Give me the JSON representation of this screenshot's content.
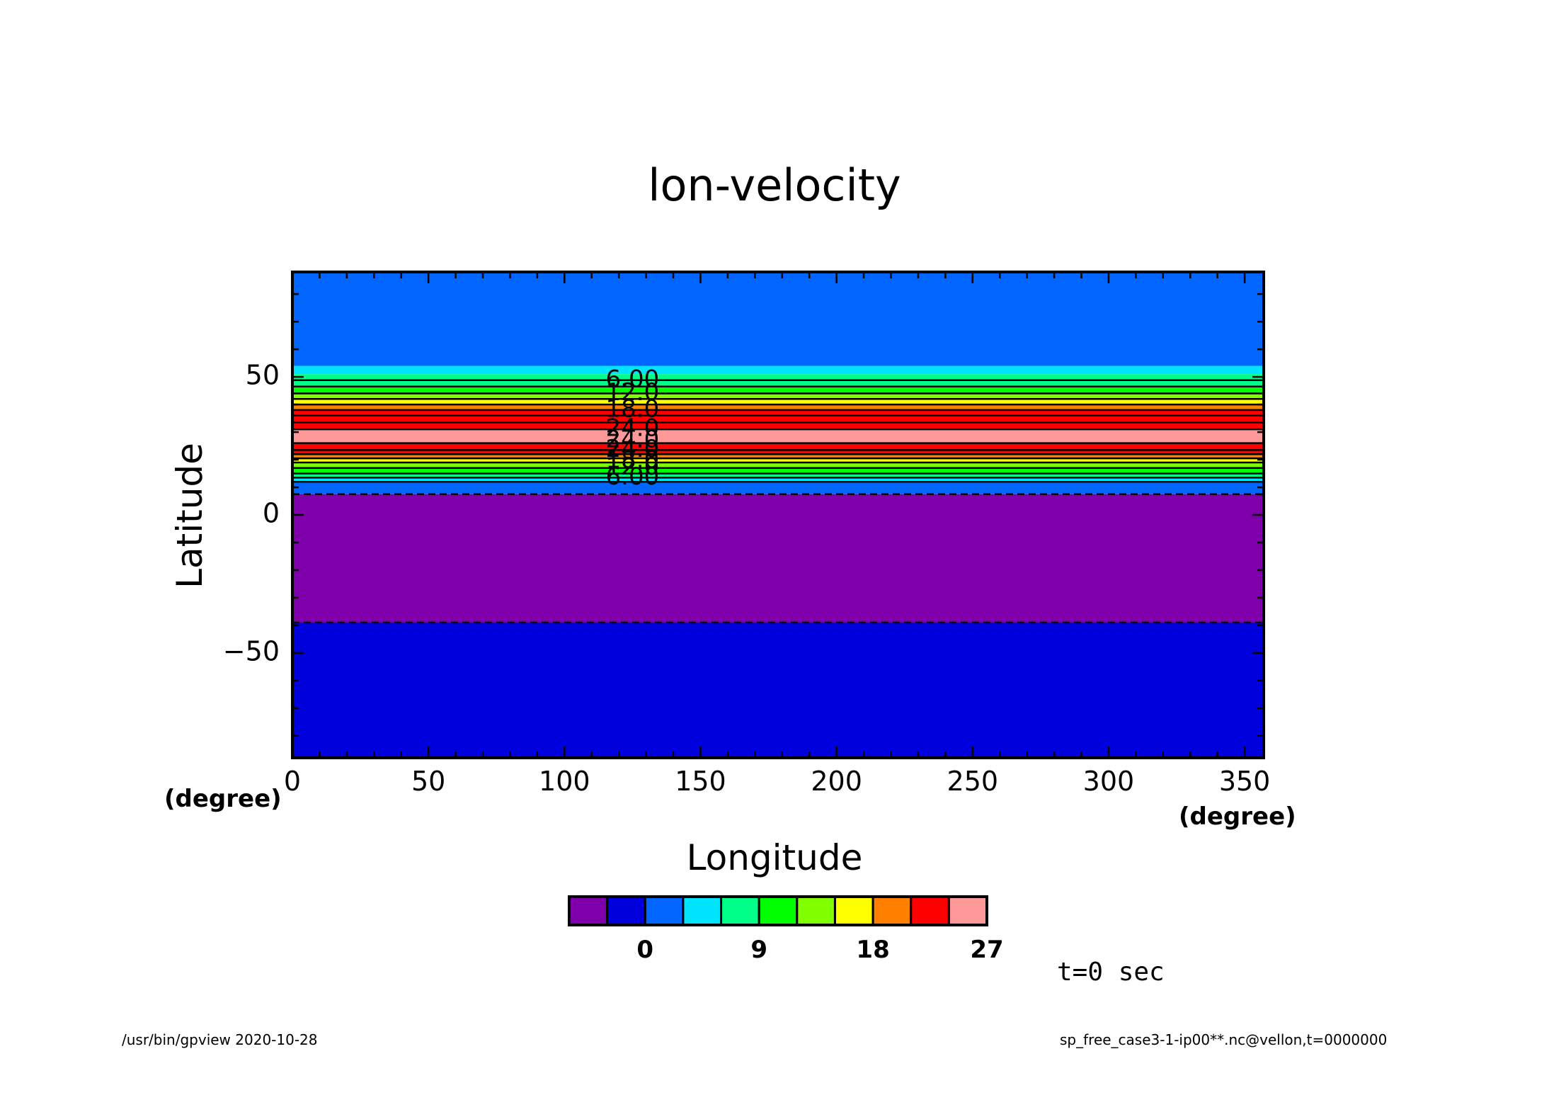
{
  "chart_data": {
    "type": "contour",
    "title": "lon-velocity",
    "xlabel": "Longitude",
    "ylabel": "Latitude",
    "xunit": "(degree)",
    "yunit": "(degree)",
    "xlim": [
      0,
      357
    ],
    "ylim": [
      -88,
      88
    ],
    "xticks": [
      0,
      50,
      100,
      150,
      200,
      250,
      300,
      350
    ],
    "yticks": [
      -50,
      0,
      50
    ],
    "bands": [
      {
        "lat_from": 54,
        "lat_to": 88,
        "color": "#0066ff"
      },
      {
        "lat_from": 51,
        "lat_to": 54,
        "color": "#00e5ff"
      },
      {
        "lat_from": 48.8,
        "lat_to": 51,
        "color": "#00ff88"
      },
      {
        "lat_from": 46.5,
        "lat_to": 48.8,
        "color": "#00ff88"
      },
      {
        "lat_from": 44,
        "lat_to": 46.5,
        "color": "#00ff00"
      },
      {
        "lat_from": 42,
        "lat_to": 44,
        "color": "#80ff00"
      },
      {
        "lat_from": 40,
        "lat_to": 42,
        "color": "#ffff00"
      },
      {
        "lat_from": 38,
        "lat_to": 40,
        "color": "#ff7f00"
      },
      {
        "lat_from": 36,
        "lat_to": 38,
        "color": "#ff0000"
      },
      {
        "lat_from": 31,
        "lat_to": 36,
        "color": "#ff0000"
      },
      {
        "lat_from": 26,
        "lat_to": 31,
        "color": "#ff9999"
      },
      {
        "lat_from": 22,
        "lat_to": 26,
        "color": "#ff0000"
      },
      {
        "lat_from": 20.5,
        "lat_to": 22,
        "color": "#ff7f00"
      },
      {
        "lat_from": 19,
        "lat_to": 20.5,
        "color": "#ffff00"
      },
      {
        "lat_from": 17,
        "lat_to": 19,
        "color": "#80ff00"
      },
      {
        "lat_from": 15,
        "lat_to": 17,
        "color": "#00ff00"
      },
      {
        "lat_from": 13.5,
        "lat_to": 15,
        "color": "#00ff88"
      },
      {
        "lat_from": 12,
        "lat_to": 13.5,
        "color": "#00e5ff"
      },
      {
        "lat_from": 7.5,
        "lat_to": 12,
        "color": "#0066ff"
      },
      {
        "lat_from": -39,
        "lat_to": 7.5,
        "color": "#7f00aa"
      },
      {
        "lat_from": -88,
        "lat_to": -39,
        "color": "#0000dd"
      }
    ],
    "contours": [
      {
        "lat": 48.8,
        "style": "solid"
      },
      {
        "lat": 46.5,
        "style": "solid"
      },
      {
        "lat": 44,
        "style": "solid"
      },
      {
        "lat": 42,
        "style": "solid"
      },
      {
        "lat": 40,
        "style": "solid"
      },
      {
        "lat": 38,
        "style": "solid"
      },
      {
        "lat": 36,
        "style": "solid"
      },
      {
        "lat": 33.5,
        "style": "solid"
      },
      {
        "lat": 31,
        "style": "solid"
      },
      {
        "lat": 26,
        "style": "solid"
      },
      {
        "lat": 23.5,
        "style": "solid"
      },
      {
        "lat": 22,
        "style": "solid"
      },
      {
        "lat": 20.5,
        "style": "solid"
      },
      {
        "lat": 19,
        "style": "solid"
      },
      {
        "lat": 17,
        "style": "solid"
      },
      {
        "lat": 15,
        "style": "solid"
      },
      {
        "lat": 13.5,
        "style": "solid"
      },
      {
        "lat": 12,
        "style": "solid"
      },
      {
        "lat": 7.5,
        "style": "dashed"
      },
      {
        "lat": -39,
        "style": "dashed"
      }
    ],
    "contour_labels": [
      {
        "lat": 48.8,
        "lon": 125,
        "text": "6.00"
      },
      {
        "lat": 44,
        "lon": 125,
        "text": "12.0"
      },
      {
        "lat": 38,
        "lon": 125,
        "text": "18.0"
      },
      {
        "lat": 31,
        "lon": 125,
        "text": "24.0"
      },
      {
        "lat": 27,
        "lon": 125,
        "text": "24.0"
      },
      {
        "lat": 23.5,
        "lon": 125,
        "text": "24.0"
      },
      {
        "lat": 19.5,
        "lon": 125,
        "text": "18.0"
      },
      {
        "lat": 17,
        "lon": 125,
        "text": "12.0"
      },
      {
        "lat": 13.5,
        "lon": 125,
        "text": "6.00"
      }
    ],
    "colorbar": {
      "colors": [
        "#7f00aa",
        "#0000dd",
        "#0066ff",
        "#00e5ff",
        "#00ff88",
        "#00ff00",
        "#80ff00",
        "#ffff00",
        "#ff7f00",
        "#ff0000",
        "#ff9999"
      ],
      "labels": [
        {
          "after_box": 2,
          "text": "0"
        },
        {
          "after_box": 5,
          "text": "9"
        },
        {
          "after_box": 8,
          "text": "18"
        },
        {
          "after_box": 11,
          "text": "27"
        }
      ]
    }
  },
  "timestamp": "t=0 sec",
  "footer": {
    "left": "/usr/bin/gpview   2020-10-28",
    "right": "sp_free_case3-1-ip00**.nc@vellon,t=0000000"
  }
}
